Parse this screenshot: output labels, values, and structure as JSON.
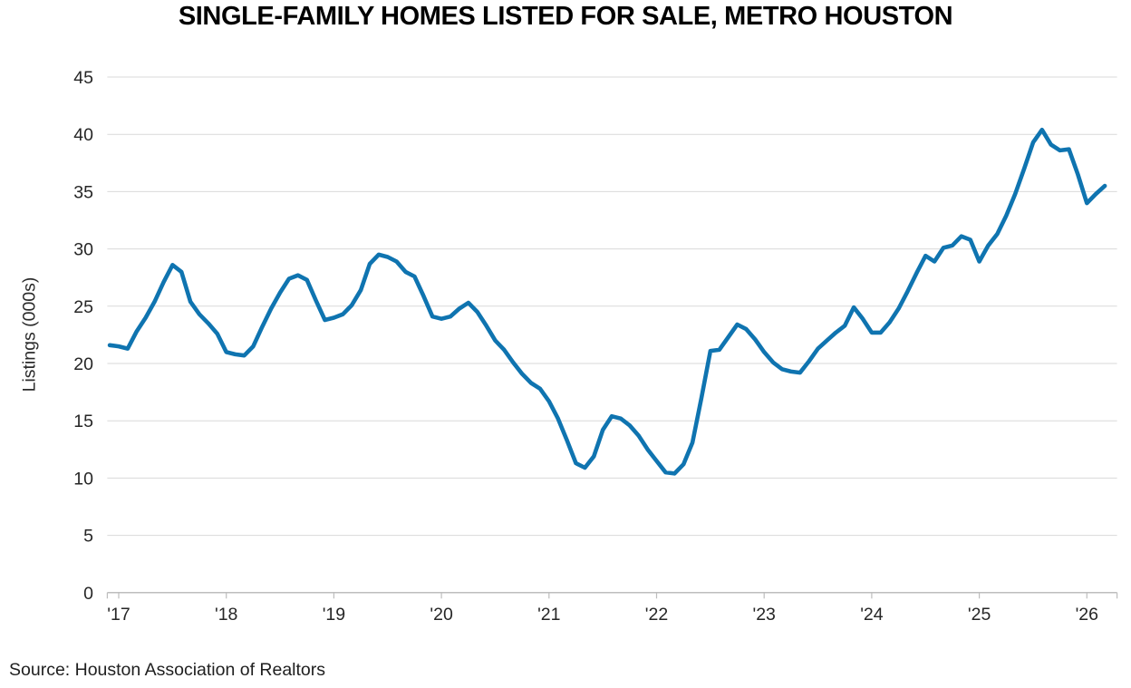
{
  "chart_data": {
    "type": "line",
    "title": "SINGLE-FAMILY HOMES LISTED FOR SALE, METRO HOUSTON",
    "ylabel": "Listings (000s)",
    "xlabel": "",
    "source": "Source: Houston Association of Realtors",
    "legend": "none",
    "grid": "horizontal",
    "ylim": [
      0,
      45
    ],
    "ytick_step": 5,
    "ytick_labels": [
      "0",
      "5",
      "10",
      "15",
      "20",
      "25",
      "30",
      "35",
      "40",
      "45"
    ],
    "x_tick_labels": [
      "'17",
      "'18",
      "'19",
      "'20",
      "'21",
      "'22",
      "'23",
      "'24",
      "'25",
      "'26"
    ],
    "line_color": "#0F74B0",
    "grid_color": "#D9D9D9",
    "axis_color": "#BDBDBD",
    "text_color": "#262626",
    "series": [
      {
        "name": "Single-family homes listed for sale (thousands)",
        "frequency": "monthly",
        "start_month": "2016-12",
        "end_month": "2026-03",
        "values": [
          21.6,
          21.5,
          21.3,
          22.8,
          24.0,
          25.4,
          27.1,
          28.6,
          28.0,
          25.4,
          24.3,
          23.5,
          22.6,
          21.0,
          20.8,
          20.7,
          21.5,
          23.2,
          24.8,
          26.2,
          27.4,
          27.7,
          27.3,
          25.5,
          23.8,
          24.0,
          24.3,
          25.1,
          26.4,
          28.7,
          29.5,
          29.3,
          28.9,
          28.0,
          27.6,
          25.9,
          24.1,
          23.9,
          24.1,
          24.8,
          25.3,
          24.5,
          23.3,
          22.0,
          21.2,
          20.1,
          19.1,
          18.3,
          17.8,
          16.7,
          15.2,
          13.3,
          11.3,
          10.9,
          11.9,
          14.2,
          15.4,
          15.2,
          14.6,
          13.7,
          12.5,
          11.5,
          10.5,
          10.4,
          11.2,
          13.1,
          17.0,
          21.1,
          21.2,
          22.3,
          23.4,
          23.0,
          22.1,
          21.0,
          20.1,
          19.5,
          19.3,
          19.2,
          20.2,
          21.3,
          22.0,
          22.7,
          23.3,
          24.9,
          23.9,
          22.7,
          22.7,
          23.6,
          24.8,
          26.3,
          27.9,
          29.4,
          28.9,
          30.1,
          30.3,
          31.1,
          30.8,
          28.9,
          30.3,
          31.3,
          32.9,
          34.8,
          37.0,
          39.3,
          40.4,
          39.1,
          38.6,
          38.7,
          36.5,
          34.0,
          34.8,
          35.5
        ]
      }
    ]
  }
}
